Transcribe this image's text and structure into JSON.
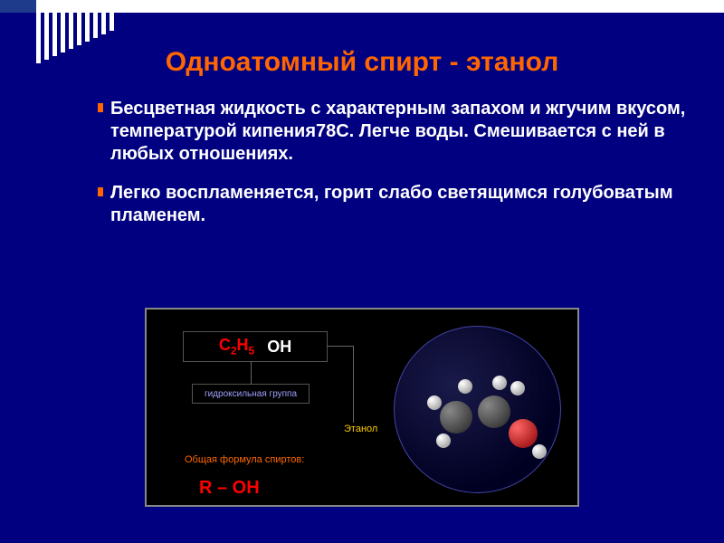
{
  "title": "Одноатомный спирт - этанол",
  "paragraphs": [
    "Бесцветная жидкость с характерным запахом и жгучим вкусом, температурой кипения78С. Легче воды. Смешивается с ней в любых отношениях.",
    "Легко воспламеняется, горит слабо светящимся голубоватым пламенем."
  ],
  "diagram": {
    "formula_c": "C",
    "formula_sub1": "2",
    "formula_h": "H",
    "formula_sub2": "5",
    "formula_oh": "OH",
    "hydroxyl_label": "гидроксильная группа",
    "ethanol_label": "Этанол",
    "general_label": "Общая формула спиртов:",
    "general_formula": "R – OH"
  },
  "colors": {
    "background": "#000080",
    "title": "#ff6600",
    "text": "#ffffff",
    "stripe": "#ffffff",
    "formula_red": "#ff0000",
    "ethanol_yellow": "#ffcc00",
    "hydroxyl_blue": "#a0a0ff"
  },
  "stripes": {
    "count": 10,
    "heights": [
      56,
      52,
      48,
      44,
      40,
      36,
      32,
      28,
      24,
      20
    ]
  }
}
